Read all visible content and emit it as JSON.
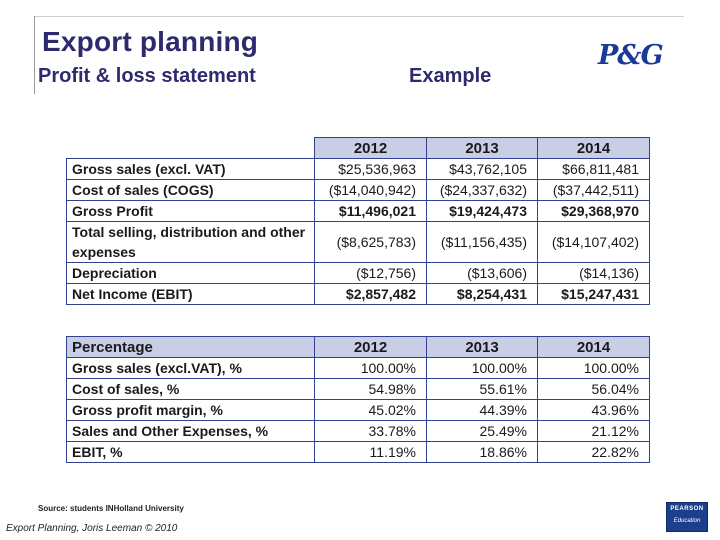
{
  "slide": {
    "title": "Export planning",
    "subtitle": "Profit & loss statement",
    "example_label": "Example",
    "logo_text": "P&G"
  },
  "table1": {
    "headers": [
      "",
      "2012",
      "2013",
      "2014"
    ],
    "rows": [
      {
        "label": "Gross sales (excl. VAT)",
        "values": [
          "$25,536,963",
          "$43,762,105",
          "$66,811,481"
        ]
      },
      {
        "label": "Cost of sales (COGS)",
        "values": [
          "($14,040,942)",
          "($24,337,632)",
          "($37,442,511)"
        ]
      },
      {
        "label": "Gross Profit",
        "values": [
          "$11,496,021",
          "$19,424,473",
          "$29,368,970"
        ]
      },
      {
        "label": "Total selling, distribution and other expenses",
        "values": [
          "($8,625,783)",
          "($11,156,435)",
          "($14,107,402)"
        ]
      },
      {
        "label": "Depreciation",
        "values": [
          "($12,756)",
          "($13,606)",
          "($14,136)"
        ]
      },
      {
        "label": "Net Income (EBIT)",
        "values": [
          "$2,857,482",
          "$8,254,431",
          "$15,247,431"
        ]
      }
    ]
  },
  "table2": {
    "headers": [
      "Percentage",
      "2012",
      "2013",
      "2014"
    ],
    "rows": [
      {
        "label": "Gross sales (excl.VAT), %",
        "values": [
          "100.00%",
          "100.00%",
          "100.00%"
        ]
      },
      {
        "label": "Cost of sales, %",
        "values": [
          "54.98%",
          "55.61%",
          "56.04%"
        ]
      },
      {
        "label": "Gross profit margin, %",
        "values": [
          "45.02%",
          "44.39%",
          "43.96%"
        ]
      },
      {
        "label": "Sales and Other Expenses, %",
        "values": [
          "33.78%",
          "25.49%",
          "21.12%"
        ]
      },
      {
        "label": "EBIT, %",
        "values": [
          "11.19%",
          "18.86%",
          "22.82%"
        ]
      }
    ]
  },
  "source": "Source: students INHolland University",
  "footer": "Export Planning, Joris Leeman © 2010",
  "pearson": {
    "brand": "PEARSON",
    "sub": "Education"
  }
}
